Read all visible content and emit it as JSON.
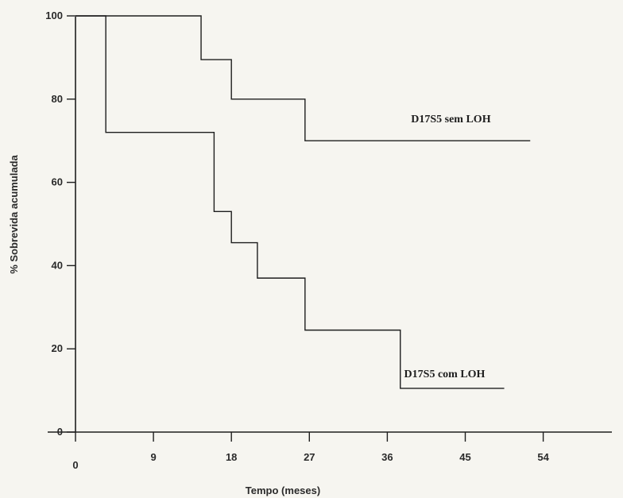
{
  "chart_data": {
    "type": "line",
    "step": true,
    "xlabel": "Tempo (meses)",
    "ylabel": "% Sobrevida acumulada",
    "xticks": [
      0,
      9,
      18,
      27,
      36,
      45,
      54
    ],
    "yticks": [
      0,
      20,
      40,
      60,
      80,
      100
    ],
    "xlim": [
      0,
      54
    ],
    "ylim": [
      0,
      100
    ],
    "grid": false,
    "series": [
      {
        "name": "D17S5 sem LOH",
        "x": [
          0,
          3.5,
          14.5,
          18,
          26.5,
          52.5
        ],
        "y": [
          100,
          100,
          89.5,
          80,
          70,
          70
        ]
      },
      {
        "name": "D17S5 com LOH",
        "x": [
          0,
          3.5,
          16,
          18,
          21,
          26.5,
          37.5,
          49.5
        ],
        "y": [
          100,
          72,
          53,
          45.5,
          37,
          24.5,
          10.5,
          10.5
        ]
      }
    ],
    "colors": {
      "line": "#1e1e1e",
      "background": "#f6f5f0"
    }
  }
}
